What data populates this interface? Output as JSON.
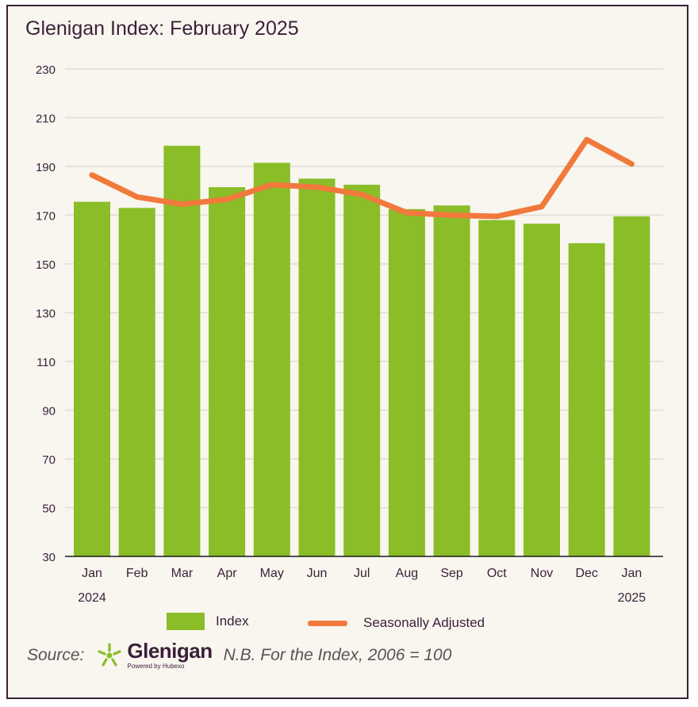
{
  "title": "Glenigan Index: February 2025",
  "chart_data": {
    "type": "bar",
    "title": "Glenigan Index: February 2025",
    "categories": [
      "Jan",
      "Feb",
      "Mar",
      "Apr",
      "May",
      "Jun",
      "Jul",
      "Aug",
      "Sep",
      "Oct",
      "Nov",
      "Dec",
      "Jan"
    ],
    "year_labels": [
      {
        "index": 0,
        "label": "2024"
      },
      {
        "index": 12,
        "label": "2025"
      }
    ],
    "ylim": [
      30,
      230
    ],
    "yticks": [
      30,
      50,
      70,
      90,
      110,
      130,
      150,
      170,
      190,
      210,
      230
    ],
    "grid": true,
    "legend_position": "bottom",
    "series": [
      {
        "name": "Index",
        "type": "bar",
        "color": "#8abd28",
        "values": [
          175.5,
          173,
          198.5,
          181.5,
          191.5,
          185,
          182.5,
          172.5,
          174,
          168,
          166.5,
          158.5,
          169.5
        ]
      },
      {
        "name": "Seasonally Adjusted",
        "type": "line",
        "color": "#f1793c",
        "values": [
          186.5,
          177.5,
          174.5,
          176.5,
          182.5,
          181.5,
          178.5,
          171,
          170,
          169.5,
          173.5,
          201,
          191
        ]
      }
    ]
  },
  "footer": {
    "source_label": "Source:",
    "logo_name": "Glenigan",
    "logo_tagline": "Powered by Hubexo",
    "logo_icon": "star-burst-icon",
    "note": "N.B. For the Index, 2006 = 100"
  }
}
